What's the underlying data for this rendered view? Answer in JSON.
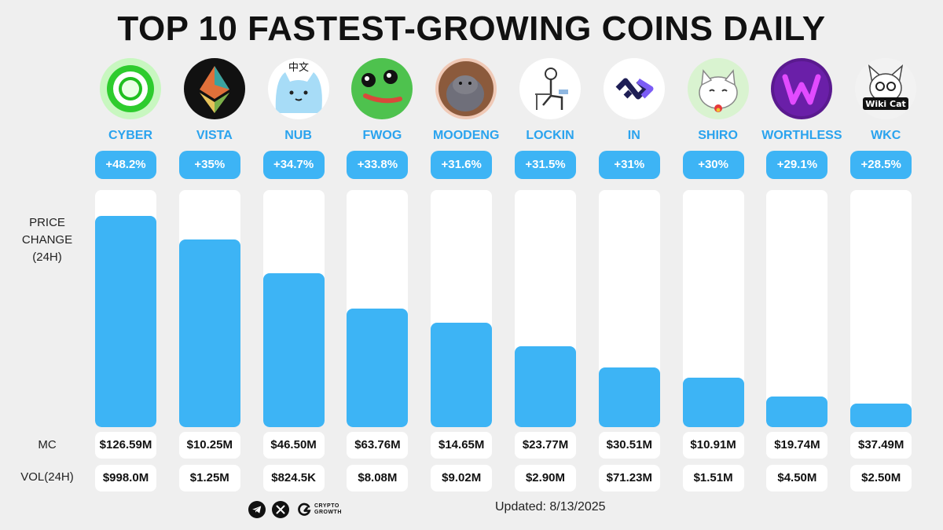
{
  "title": "TOP 10 FASTEST-GROWING COINS DAILY",
  "labels": {
    "price_line1": "PRICE",
    "price_line2": "CHANGE",
    "price_line3": "(24H)",
    "mc": "MC",
    "vol": "VOL(24H)"
  },
  "footer": {
    "updated": "Updated: 8/13/2025",
    "brand_line1": "CRYPTO",
    "brand_line2": "GROWTH",
    "icons": [
      "telegram-icon",
      "x-icon",
      "crypto-growth-logo-icon"
    ]
  },
  "colors": {
    "background": "#efefef",
    "accent": "#3db4f5",
    "symbol_text": "#2aa3ee",
    "track": "#ffffff"
  },
  "chart_data": {
    "type": "bar",
    "title": "TOP 10 FASTEST-GROWING COINS DAILY",
    "ylabel": "PRICE CHANGE (24H)",
    "categories": [
      "CYBER",
      "VISTA",
      "NUB",
      "FWOG",
      "MOODENG",
      "LOCKIN",
      "IN",
      "SHIRO",
      "WORTHLESS",
      "WKC"
    ],
    "values": [
      48.2,
      35,
      34.7,
      33.8,
      31.6,
      31.5,
      31,
      30,
      29.1,
      28.5
    ],
    "value_labels": [
      "+48.2%",
      "+35%",
      "+34.7%",
      "+33.8%",
      "+31.6%",
      "+31.5%",
      "+31%",
      "+30%",
      "+29.1%",
      "+28.5%"
    ],
    "bar_fill_fraction": [
      0.89,
      0.79,
      0.65,
      0.5,
      0.44,
      0.34,
      0.25,
      0.21,
      0.13,
      0.1
    ],
    "mc": [
      "$126.59M",
      "$10.25M",
      "$46.50M",
      "$63.76M",
      "$14.65M",
      "$23.77M",
      "$30.51M",
      "$10.91M",
      "$19.74M",
      "$37.49M"
    ],
    "vol_24h": [
      "$998.0M",
      "$1.25M",
      "$824.5K",
      "$8.08M",
      "$9.02M",
      "$2.90M",
      "$71.23M",
      "$1.51M",
      "$4.50M",
      "$2.50M"
    ],
    "logo_icons": [
      "cyber-ring-icon",
      "vista-diamond-icon",
      "nub-cat-icon",
      "fwog-frog-icon",
      "moodeng-hippo-icon",
      "lockin-sitting-man-icon",
      "in-infinity-icon",
      "shiro-cat-icon",
      "worthless-w-icon",
      "wiki-cat-icon"
    ],
    "nub_logo_text": "中文",
    "wkc_logo_text": "Wiki Cat",
    "grid": false,
    "legend": "none"
  }
}
